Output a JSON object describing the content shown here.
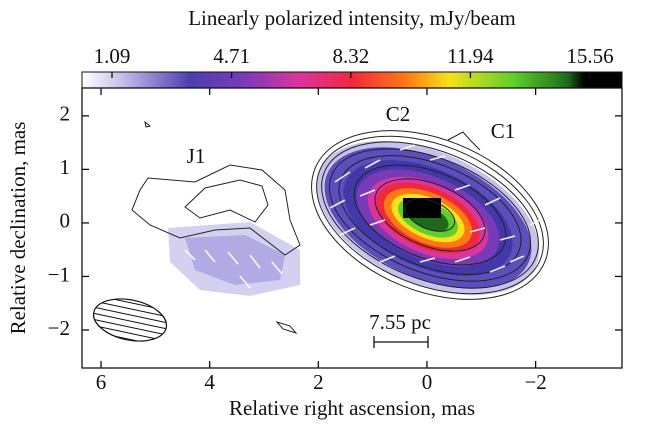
{
  "chart_data": {
    "type": "image",
    "title": "Linearly polarized intensity, mJy/beam",
    "clim": [
      1.09,
      15.56
    ],
    "cticks": [
      1.09,
      4.71,
      8.32,
      11.94,
      15.56
    ],
    "x_label": "Relative right ascension, mas",
    "y_label": "Relative declination, mas",
    "xlim": [
      6.35,
      -3.59
    ],
    "ylim": [
      -2.71,
      2.52
    ],
    "xticks": [
      6,
      4,
      2,
      0,
      {
        "value": -2,
        "label": "−2"
      }
    ],
    "yticks": [
      2,
      1,
      0,
      {
        "value": -1,
        "label": "−1"
      },
      {
        "value": -2,
        "label": "−2"
      }
    ],
    "annotations": [
      "J1",
      "C2",
      "C1",
      "7.55 pc"
    ]
  }
}
